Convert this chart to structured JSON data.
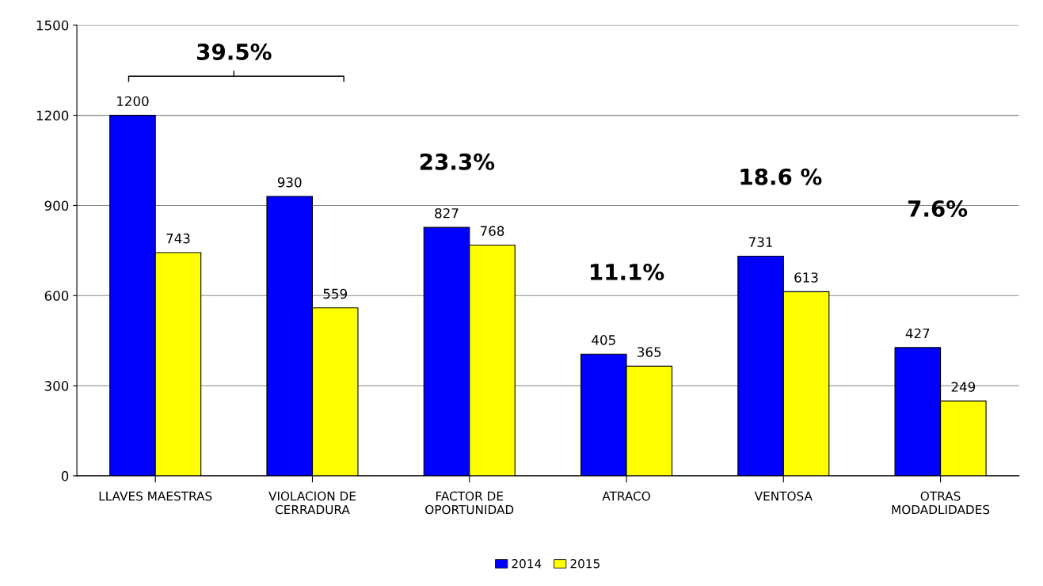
{
  "chart_data": {
    "type": "bar",
    "categories": [
      "LLAVES MAESTRAS",
      "VIOLACION DE\nCERRADURA",
      "FACTOR DE\nOPORTUNIDAD",
      "ATRACO",
      "VENTOSA",
      "OTRAS\nMODADLIDADES"
    ],
    "series": [
      {
        "name": "2014",
        "color": "#0000ff",
        "values": [
          1200,
          930,
          827,
          405,
          731,
          427
        ]
      },
      {
        "name": "2015",
        "color": "#ffff00",
        "values": [
          743,
          559,
          768,
          365,
          613,
          249
        ]
      }
    ],
    "ylim": [
      0,
      1500
    ],
    "yticks": [
      0,
      300,
      600,
      900,
      1200,
      1500
    ],
    "grid": "y",
    "legend": "bottom",
    "data_labels": true,
    "annotations": [
      "39.5%",
      "23.3%",
      "11.1%",
      "18.6 %",
      "7.6%"
    ]
  }
}
